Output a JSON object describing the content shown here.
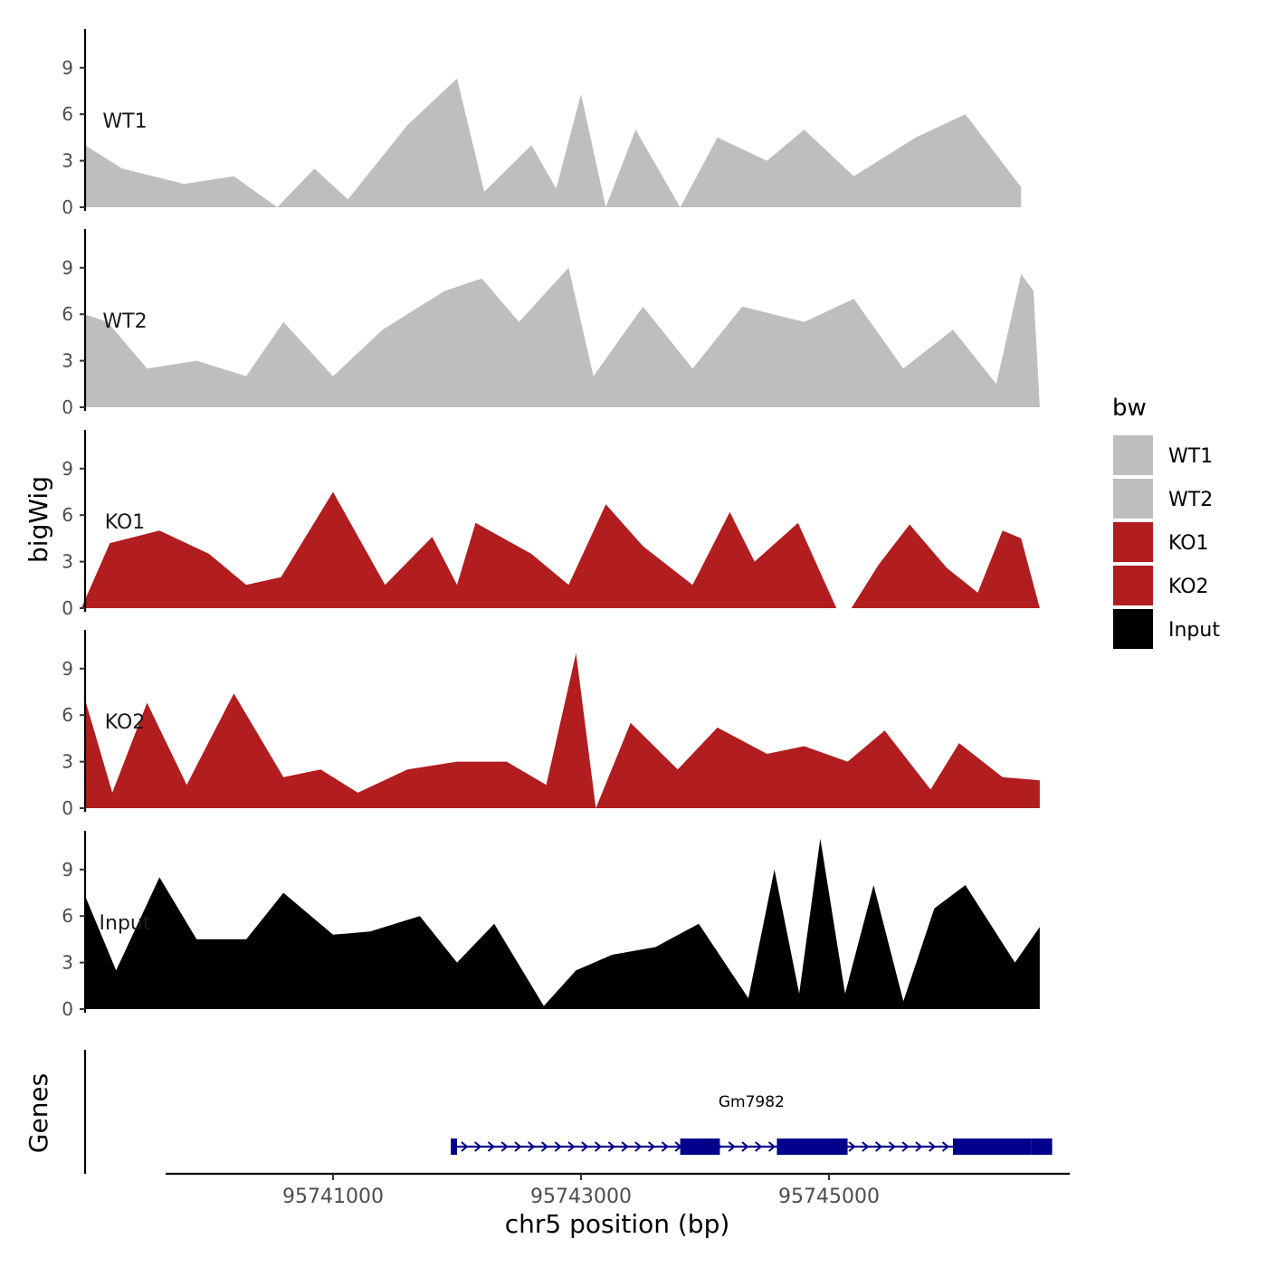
{
  "chart_data": {
    "type": "area",
    "ylabel": "bigWig",
    "xlabel": "chr5 position (bp)",
    "ylim": [
      0,
      11.5
    ],
    "y_ticks": [
      0,
      3,
      6,
      9
    ],
    "x_domain": [
      95739000,
      95747000
    ],
    "x_ticks": [
      95741000,
      95743000,
      95745000
    ],
    "x_tick_labels": [
      "95741000",
      "95743000",
      "95745000"
    ],
    "legend": {
      "title": "bw",
      "position": "right",
      "entries": [
        {
          "label": "WT1",
          "color": "#bebebe"
        },
        {
          "label": "WT2",
          "color": "#bebebe"
        },
        {
          "label": "KO1",
          "color": "#b21d1f"
        },
        {
          "label": "KO2",
          "color": "#b21d1f"
        },
        {
          "label": "Input",
          "color": "#000000"
        }
      ]
    },
    "tracks": [
      {
        "name": "WT1",
        "color": "#bebebe",
        "series": [
          {
            "x": [
              95739000,
              95739300,
              95739800,
              95740200,
              95740550,
              95740850,
              95741120,
              95741600,
              95742000,
              95742220,
              95742600,
              95742800,
              95743000,
              95743200,
              95743440,
              95743800,
              95744100,
              95744500,
              95744800,
              95745200,
              95745700,
              95746100,
              95746550
            ],
            "y": [
              4.0,
              2.5,
              1.5,
              2.0,
              0.0,
              2.5,
              0.5,
              5.3,
              8.3,
              1.0,
              4.0,
              1.2,
              7.3,
              0.0,
              5.0,
              0.0,
              4.5,
              3.0,
              5.0,
              2.0,
              4.5,
              6.0,
              1.3
            ]
          }
        ]
      },
      {
        "name": "WT2",
        "color": "#bebebe",
        "series": [
          {
            "x": [
              95739000,
              95739180,
              95739500,
              95739900,
              95740300,
              95740600,
              95741000,
              95741400,
              95741900,
              95742200,
              95742500,
              95742900,
              95743100,
              95743500,
              95743900,
              95744300,
              95744800,
              95745200,
              95745600,
              95746000,
              95746350,
              95746550,
              95746650,
              95746700
            ],
            "y": [
              6.0,
              5.5,
              2.5,
              3.0,
              2.0,
              5.5,
              2.0,
              5.0,
              7.5,
              8.3,
              5.5,
              9.0,
              2.0,
              6.5,
              2.5,
              6.5,
              5.5,
              7.0,
              2.5,
              5.0,
              1.5,
              8.6,
              7.5,
              0.0
            ]
          }
        ]
      },
      {
        "name": "KO1",
        "color": "#b21d1f",
        "series": [
          {
            "x": [
              95738970,
              95739200,
              95739600,
              95740000,
              95740300,
              95740580,
              95741000,
              95741420,
              95741800,
              95742000,
              95742150,
              95742600,
              95742900,
              95743200,
              95743500,
              95743900,
              95744200,
              95744400,
              95744750,
              95745060
            ],
            "y": [
              0.0,
              4.2,
              5.0,
              3.5,
              1.5,
              2.0,
              7.5,
              1.5,
              4.6,
              1.5,
              5.5,
              3.5,
              1.5,
              6.7,
              4.0,
              1.5,
              6.2,
              3.0,
              5.5,
              0.0
            ]
          },
          {
            "x": [
              95745180,
              95745400,
              95745650,
              95745950,
              95746200,
              95746400,
              95746550,
              95746700
            ],
            "y": [
              0.0,
              2.8,
              5.4,
              2.6,
              1.0,
              5.0,
              4.5,
              0.0
            ]
          }
        ]
      },
      {
        "name": "KO2",
        "color": "#b21d1f",
        "series": [
          {
            "x": [
              95739000,
              95739220,
              95739500,
              95739820,
              95740200,
              95740600,
              95740900,
              95741200,
              95741600,
              95742000,
              95742400,
              95742720,
              95742960,
              95743120,
              95743400,
              95743780,
              95744100,
              95744500,
              95744800,
              95745150,
              95745450,
              95745820,
              95746050,
              95746400,
              95746700
            ],
            "y": [
              7.0,
              1.0,
              6.8,
              1.5,
              7.4,
              2.0,
              2.5,
              1.0,
              2.5,
              3.0,
              3.0,
              1.5,
              10.0,
              0.0,
              5.5,
              2.5,
              5.2,
              3.5,
              4.0,
              3.0,
              5.0,
              1.2,
              4.2,
              2.0,
              1.8
            ]
          }
        ]
      },
      {
        "name": "Input",
        "color": "#000000",
        "series": [
          {
            "x": [
              95739000,
              95739250,
              95739600,
              95739900,
              95740300,
              95740600,
              95741000,
              95741300,
              95741700,
              95742000,
              95742300,
              95742700,
              95742960,
              95743250,
              95743600,
              95743950,
              95744350,
              95744560,
              95744760,
              95744930,
              95745130,
              95745360,
              95745600,
              95745850,
              95746100,
              95746500,
              95746700
            ],
            "y": [
              7.3,
              2.5,
              8.5,
              4.5,
              4.5,
              7.5,
              4.8,
              5.0,
              6.0,
              3.0,
              5.5,
              0.2,
              2.5,
              3.5,
              4.0,
              5.5,
              0.7,
              9.0,
              1.0,
              11.0,
              1.0,
              8.0,
              0.5,
              6.5,
              8.0,
              3.0,
              5.3
            ]
          }
        ]
      }
    ],
    "genes": {
      "track_label": "Genes",
      "name": "Gm7982",
      "color": "#00008b",
      "start": 95741950,
      "end": 95746800,
      "exons": [
        [
          95741950,
          95742000
        ],
        [
          95743800,
          95744120
        ],
        [
          95744580,
          95745150
        ],
        [
          95746000,
          95746630
        ],
        [
          95746630,
          95746800
        ]
      ]
    }
  }
}
